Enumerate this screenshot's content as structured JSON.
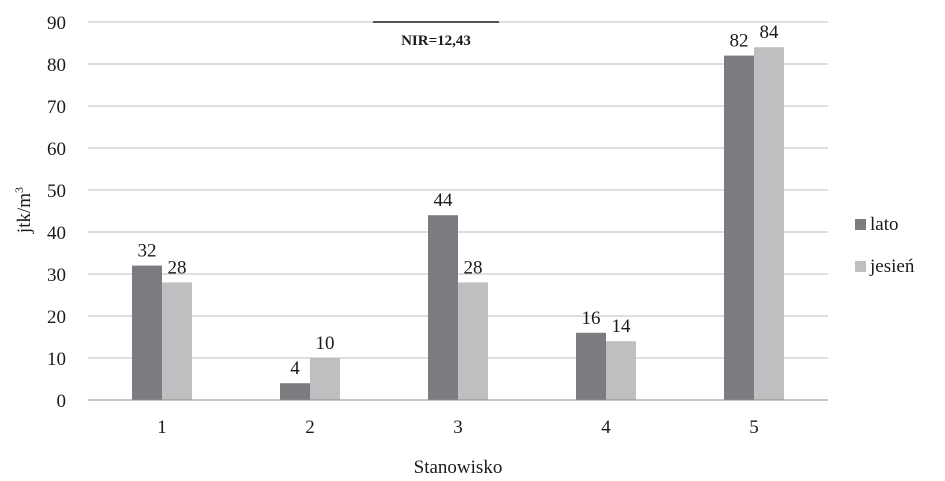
{
  "chart_data": {
    "type": "bar",
    "categories": [
      "1",
      "2",
      "3",
      "4",
      "5"
    ],
    "series": [
      {
        "name": "lato",
        "values": [
          32,
          4,
          44,
          16,
          82
        ],
        "color": "#7b7c80"
      },
      {
        "name": "jesień",
        "values": [
          28,
          10,
          28,
          14,
          84
        ],
        "color": "#bfbfc1"
      }
    ],
    "data_labels": {
      "lato": [
        "32",
        "4",
        "44",
        "16",
        "82"
      ],
      "jesień": [
        "28",
        "10",
        "28",
        "14",
        "84"
      ]
    },
    "ylim": [
      0,
      90
    ],
    "yticks": [
      0,
      10,
      20,
      30,
      40,
      50,
      60,
      70,
      80,
      90
    ],
    "ytick_labels": [
      "0",
      "10",
      "20",
      "30",
      "40",
      "50",
      "60",
      "70",
      "80",
      "90"
    ],
    "xlabel": "Stanowisko",
    "ylabel": "jtk/m",
    "ylabel_superscript": "3",
    "annotation": "NIR=12,43",
    "grid": true,
    "legend_position": "right"
  }
}
